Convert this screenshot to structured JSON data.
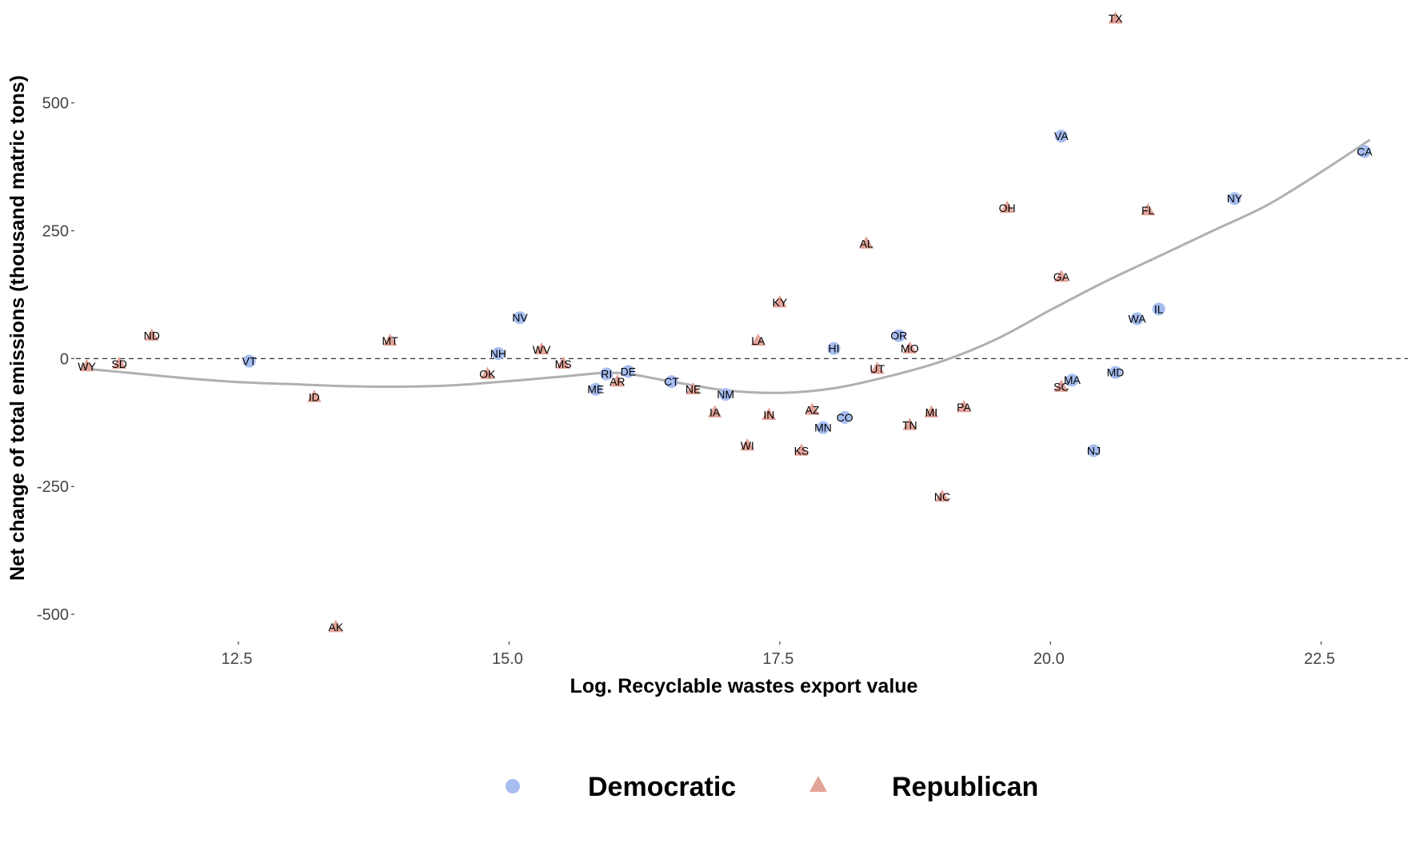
{
  "chart_data": {
    "type": "scatter",
    "title": "",
    "xlabel": "Log. Recyclable wastes export value",
    "ylabel": "Net change of total emissions (thousand matric tons)",
    "xlim": [
      11.0,
      23.3
    ],
    "ylim": [
      -550,
      670
    ],
    "xticks": [
      12.5,
      15.0,
      17.5,
      20.0,
      22.5
    ],
    "xtick_labels": [
      "12.5",
      "15.0",
      "17.5",
      "20.0",
      "22.5"
    ],
    "yticks": [
      -500,
      -250,
      0,
      250,
      500
    ],
    "ytick_labels": [
      "-500",
      "-250",
      "0",
      "250",
      "500"
    ],
    "reference_line": {
      "y": 0,
      "style": "dashed"
    },
    "grid": false,
    "legend": {
      "position": "bottom",
      "entries": [
        {
          "name": "Democratic",
          "shape": "circle",
          "color": "#a6bdf0"
        },
        {
          "name": "Republican",
          "shape": "triangle",
          "color": "#e3a399"
        }
      ]
    },
    "smooth_line_color": "#b0b0b0",
    "series": [
      {
        "name": "Democratic",
        "points": [
          {
            "label": "VT",
            "x": 12.6,
            "y": -5
          },
          {
            "label": "NH",
            "x": 14.9,
            "y": 10
          },
          {
            "label": "NV",
            "x": 15.1,
            "y": 80
          },
          {
            "label": "RI",
            "x": 15.9,
            "y": -30
          },
          {
            "label": "ME",
            "x": 15.8,
            "y": -60
          },
          {
            "label": "DE",
            "x": 16.1,
            "y": -25
          },
          {
            "label": "CT",
            "x": 16.5,
            "y": -45
          },
          {
            "label": "NM",
            "x": 17.0,
            "y": -70
          },
          {
            "label": "HI",
            "x": 18.0,
            "y": 20
          },
          {
            "label": "MN",
            "x": 17.9,
            "y": -135
          },
          {
            "label": "CO",
            "x": 18.1,
            "y": -115
          },
          {
            "label": "OR",
            "x": 18.6,
            "y": 45
          },
          {
            "label": "VA",
            "x": 20.1,
            "y": 435
          },
          {
            "label": "MA",
            "x": 20.2,
            "y": -42
          },
          {
            "label": "NJ",
            "x": 20.4,
            "y": -180
          },
          {
            "label": "MD",
            "x": 20.6,
            "y": -27
          },
          {
            "label": "WA",
            "x": 20.8,
            "y": 78
          },
          {
            "label": "IL",
            "x": 21.0,
            "y": 97
          },
          {
            "label": "NY",
            "x": 21.7,
            "y": 313
          },
          {
            "label": "CA",
            "x": 22.9,
            "y": 405
          }
        ]
      },
      {
        "name": "Republican",
        "points": [
          {
            "label": "WY",
            "x": 11.1,
            "y": -15
          },
          {
            "label": "SD",
            "x": 11.4,
            "y": -10
          },
          {
            "label": "ND",
            "x": 11.7,
            "y": 45
          },
          {
            "label": "ID",
            "x": 13.2,
            "y": -75
          },
          {
            "label": "AK",
            "x": 13.4,
            "y": -525
          },
          {
            "label": "MT",
            "x": 13.9,
            "y": 35
          },
          {
            "label": "OK",
            "x": 14.8,
            "y": -30
          },
          {
            "label": "WV",
            "x": 15.3,
            "y": 18
          },
          {
            "label": "MS",
            "x": 15.5,
            "y": -10
          },
          {
            "label": "AR",
            "x": 16.0,
            "y": -45
          },
          {
            "label": "NE",
            "x": 16.7,
            "y": -60
          },
          {
            "label": "IA",
            "x": 16.9,
            "y": -105
          },
          {
            "label": "WI",
            "x": 17.2,
            "y": -170
          },
          {
            "label": "LA",
            "x": 17.3,
            "y": 35
          },
          {
            "label": "IN",
            "x": 17.4,
            "y": -110
          },
          {
            "label": "KY",
            "x": 17.5,
            "y": 110
          },
          {
            "label": "KS",
            "x": 17.7,
            "y": -180
          },
          {
            "label": "AZ",
            "x": 17.8,
            "y": -100
          },
          {
            "label": "AL",
            "x": 18.3,
            "y": 225
          },
          {
            "label": "UT",
            "x": 18.4,
            "y": -20
          },
          {
            "label": "MO",
            "x": 18.7,
            "y": 20
          },
          {
            "label": "TN",
            "x": 18.7,
            "y": -130
          },
          {
            "label": "MI",
            "x": 18.9,
            "y": -105
          },
          {
            "label": "NC",
            "x": 19.0,
            "y": -270
          },
          {
            "label": "PA",
            "x": 19.2,
            "y": -95
          },
          {
            "label": "OH",
            "x": 19.6,
            "y": 295
          },
          {
            "label": "GA",
            "x": 20.1,
            "y": 160
          },
          {
            "label": "SC",
            "x": 20.1,
            "y": -55
          },
          {
            "label": "TX",
            "x": 20.6,
            "y": 665
          },
          {
            "label": "FL",
            "x": 20.9,
            "y": 290
          }
        ]
      }
    ],
    "smooth_curve": {
      "x": [
        11.1,
        11.5,
        12.0,
        12.5,
        13.0,
        13.5,
        14.0,
        14.5,
        15.0,
        15.5,
        16.0,
        16.5,
        17.0,
        17.5,
        18.0,
        18.5,
        19.0,
        19.5,
        20.0,
        20.5,
        21.0,
        21.5,
        22.0,
        22.5,
        22.95
      ],
      "y": [
        -20,
        -28,
        -38,
        -46,
        -50,
        -54,
        -55,
        -52,
        -44,
        -35,
        -28,
        -45,
        -62,
        -67,
        -58,
        -35,
        -5,
        38,
        95,
        150,
        200,
        250,
        300,
        365,
        428
      ]
    }
  }
}
